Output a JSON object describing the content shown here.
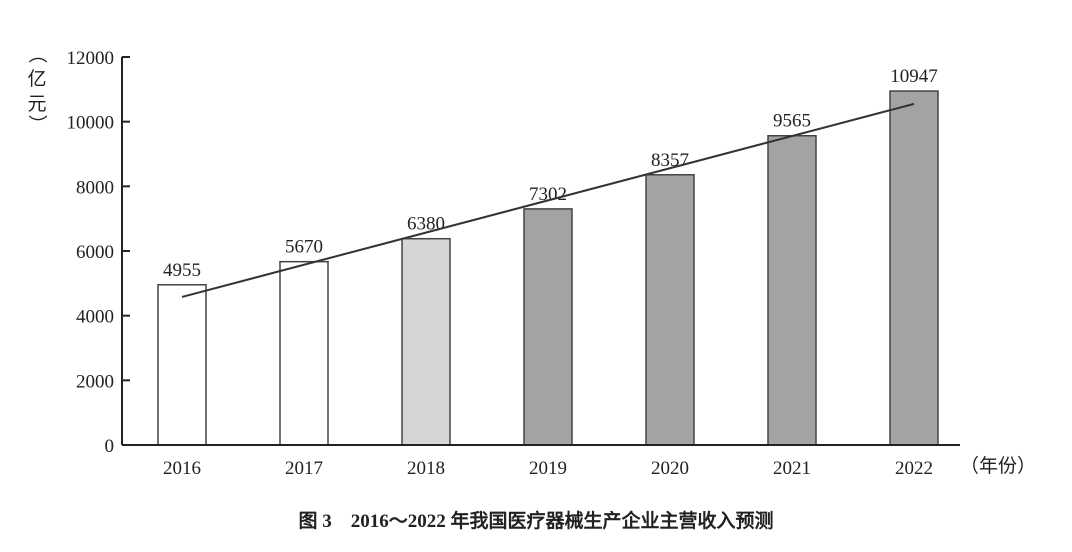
{
  "chart_data": {
    "type": "bar",
    "title": "图 3　2016～2022 年我国医疗器械生产企业主营收入预测",
    "xlabel": "（年份）",
    "ylabel": "（亿元）",
    "ylabel_chars": [
      "（",
      "亿",
      "元",
      "）"
    ],
    "categories": [
      "2016",
      "2017",
      "2018",
      "2019",
      "2020",
      "2021",
      "2022"
    ],
    "values": [
      4955,
      5670,
      6380,
      7302,
      8357,
      9565,
      10947
    ],
    "value_labels": [
      "4955",
      "5670",
      "6380",
      "7302",
      "8357",
      "9565",
      "10947"
    ],
    "bar_colors": [
      "#ffffff",
      "#ffffff",
      "#d6d6d6",
      "#a3a3a3",
      "#a3a3a3",
      "#a3a3a3",
      "#a3a3a3"
    ],
    "ylim": [
      0,
      12000
    ],
    "yticks": [
      0,
      2000,
      4000,
      6000,
      8000,
      10000,
      12000
    ],
    "ytick_labels": [
      "0",
      "2000",
      "4000",
      "6000",
      "8000",
      "10000",
      "12000"
    ],
    "trendline": {
      "start": [
        "2016",
        4580
      ],
      "end": [
        "2022",
        10550
      ]
    },
    "grid": false,
    "legend": "none"
  }
}
